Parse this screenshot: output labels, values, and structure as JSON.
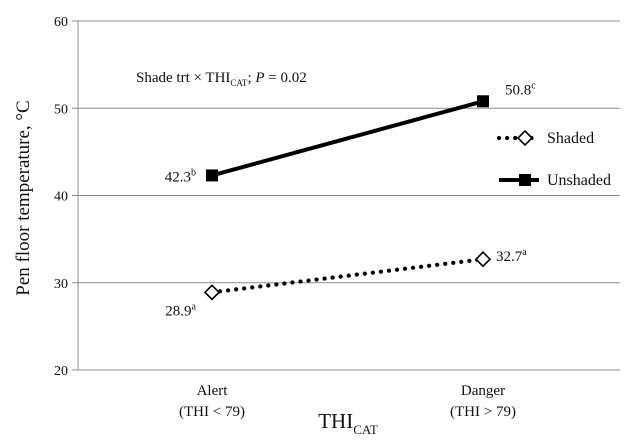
{
  "chart_data": {
    "type": "line",
    "categories": [
      "Alert",
      "Danger"
    ],
    "category_sublabels": [
      "(THI < 79)",
      "(THI > 79)"
    ],
    "x_axis_title": {
      "main": "THI",
      "sub": "CAT"
    },
    "ylabel": "Pen floor temperature, °C",
    "ylim": [
      20,
      60
    ],
    "yticks": [
      20,
      30,
      40,
      50,
      60
    ],
    "grid": true,
    "annotation": {
      "prefix": "Shade trt × THI",
      "sub": "CAT",
      "sep": "; ",
      "p_label": "P",
      "p_value": " = 0.02"
    },
    "series": [
      {
        "name": "Shaded",
        "values": [
          28.9,
          32.7
        ],
        "labels": [
          "28.9",
          "32.7"
        ],
        "superscripts": [
          "a",
          "a"
        ],
        "style": "dotted",
        "marker": "open-diamond",
        "color": "#000000"
      },
      {
        "name": "Unshaded",
        "values": [
          42.3,
          50.8
        ],
        "labels": [
          "42.3",
          "50.8"
        ],
        "superscripts": [
          "b",
          "c"
        ],
        "style": "solid",
        "marker": "filled-square",
        "color": "#000000"
      }
    ],
    "legend_position": "right"
  }
}
